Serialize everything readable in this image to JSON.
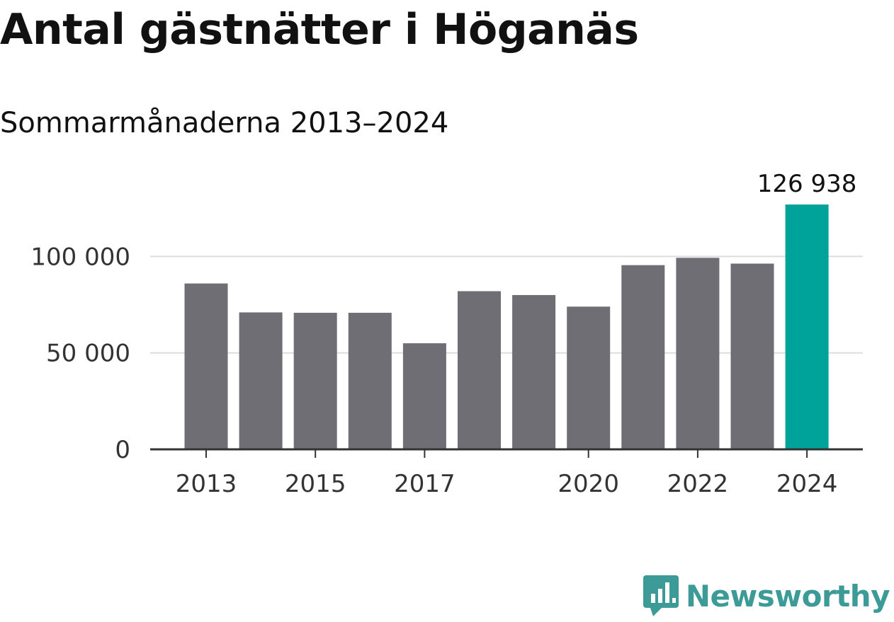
{
  "header": {
    "title": "Antal gästnätter i Höganäs",
    "subtitle": "Sommarmånaderna 2013–2024"
  },
  "branding": {
    "name": "Newsworthy",
    "icon": "newsworthy-logo-icon",
    "color": "#3d9b97"
  },
  "colors": {
    "bar": "#6f6e74",
    "highlight": "#00a39a",
    "grid": "#dddddd",
    "axis": "#333333"
  },
  "chart_data": {
    "type": "bar",
    "title": "Antal gästnätter i Höganäs",
    "subtitle": "Sommarmånaderna 2013–2024",
    "xlabel": "",
    "ylabel": "",
    "categories": [
      "2013",
      "2014",
      "2015",
      "2016",
      "2017",
      "2018",
      "2019",
      "2020",
      "2021",
      "2022",
      "2023",
      "2024"
    ],
    "values": [
      86000,
      71000,
      70800,
      70800,
      55000,
      82000,
      80000,
      74000,
      95500,
      99300,
      96300,
      126938
    ],
    "highlight_index": 11,
    "data_labels": [
      {
        "index": 11,
        "text": "126 938"
      }
    ],
    "x_tick_labels": [
      "2013",
      "2015",
      "2017",
      "2020",
      "2022",
      "2024"
    ],
    "y_ticks": [
      0,
      50000,
      100000
    ],
    "y_tick_labels": [
      "0",
      "50 000",
      "100 000"
    ],
    "ylim": [
      0,
      126938
    ],
    "grid": true
  }
}
